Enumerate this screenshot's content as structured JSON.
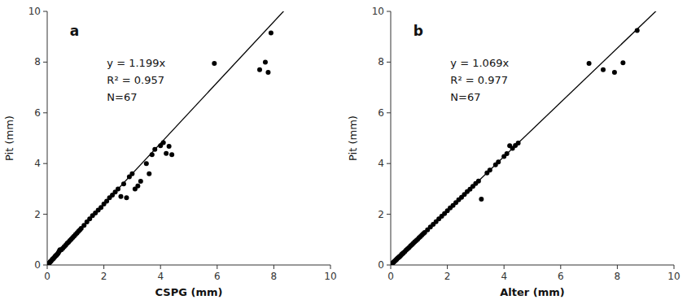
{
  "chart_data": [
    {
      "type": "scatter",
      "title": "a",
      "xlabel": "CSPG (mm)",
      "ylabel": "Pit (mm)",
      "slope": 1.199,
      "annotations": [
        "y = 1.199x",
        "R² = 0.957",
        "N=67"
      ],
      "xlim": [
        0,
        10
      ],
      "ylim": [
        0,
        10
      ],
      "xticks": [
        0,
        2,
        4,
        6,
        8,
        10
      ],
      "yticks": [
        0,
        2,
        4,
        6,
        8,
        10
      ],
      "grid": false,
      "color": "#000000",
      "x": [
        0.05,
        0.07,
        0.1,
        0.12,
        0.15,
        0.18,
        0.2,
        0.22,
        0.25,
        0.28,
        0.3,
        0.32,
        0.35,
        0.38,
        0.4,
        0.43,
        0.45,
        0.5,
        0.55,
        0.6,
        0.65,
        0.7,
        0.75,
        0.8,
        0.85,
        0.9,
        0.95,
        1.0,
        1.05,
        1.1,
        1.15,
        1.2,
        1.3,
        1.4,
        1.5,
        1.6,
        1.7,
        1.8,
        1.9,
        2.0,
        2.1,
        2.2,
        2.3,
        2.4,
        2.5,
        2.6,
        2.7,
        2.8,
        2.9,
        3.0,
        3.1,
        3.2,
        3.3,
        3.5,
        3.6,
        3.7,
        3.8,
        4.0,
        4.1,
        4.2,
        4.3,
        4.4,
        5.9,
        7.5,
        7.7,
        7.8,
        7.9
      ],
      "values": [
        0.05,
        0.07,
        0.12,
        0.14,
        0.18,
        0.22,
        0.24,
        0.26,
        0.3,
        0.34,
        0.37,
        0.38,
        0.42,
        0.46,
        0.5,
        0.55,
        0.6,
        0.6,
        0.66,
        0.72,
        0.78,
        0.85,
        0.9,
        0.96,
        1.02,
        1.08,
        1.14,
        1.2,
        1.26,
        1.32,
        1.38,
        1.44,
        1.56,
        1.7,
        1.82,
        1.95,
        2.05,
        2.16,
        2.27,
        2.4,
        2.52,
        2.65,
        2.76,
        2.88,
        3.0,
        2.7,
        3.2,
        2.65,
        3.48,
        3.6,
        3.0,
        3.12,
        3.3,
        4.0,
        3.6,
        4.35,
        4.56,
        4.7,
        4.82,
        4.4,
        4.68,
        4.35,
        7.95,
        7.7,
        8.0,
        7.6,
        9.15
      ]
    },
    {
      "type": "scatter",
      "title": "b",
      "xlabel": "Alter (mm)",
      "ylabel": "Pit (mm)",
      "slope": 1.069,
      "annotations": [
        "y = 1.069x",
        "R² = 0.977",
        "N=67"
      ],
      "xlim": [
        0,
        10
      ],
      "ylim": [
        0,
        10
      ],
      "xticks": [
        0,
        2,
        4,
        6,
        8,
        10
      ],
      "yticks": [
        0,
        2,
        4,
        6,
        8,
        10
      ],
      "grid": false,
      "color": "#000000",
      "x": [
        0.05,
        0.07,
        0.1,
        0.12,
        0.15,
        0.18,
        0.2,
        0.22,
        0.25,
        0.28,
        0.3,
        0.32,
        0.35,
        0.38,
        0.4,
        0.43,
        0.45,
        0.5,
        0.55,
        0.6,
        0.65,
        0.7,
        0.75,
        0.8,
        0.85,
        0.9,
        0.95,
        1.0,
        1.05,
        1.1,
        1.15,
        1.2,
        1.3,
        1.4,
        1.5,
        1.6,
        1.7,
        1.8,
        1.9,
        2.0,
        2.1,
        2.2,
        2.3,
        2.4,
        2.5,
        2.6,
        2.7,
        2.8,
        2.9,
        3.0,
        3.1,
        3.2,
        3.4,
        3.5,
        3.7,
        3.8,
        4.0,
        4.1,
        4.2,
        4.3,
        4.4,
        4.5,
        7.0,
        7.5,
        7.9,
        8.2,
        8.7
      ],
      "values": [
        0.05,
        0.07,
        0.11,
        0.13,
        0.16,
        0.19,
        0.21,
        0.24,
        0.27,
        0.3,
        0.32,
        0.34,
        0.37,
        0.41,
        0.43,
        0.46,
        0.48,
        0.53,
        0.59,
        0.64,
        0.69,
        0.75,
        0.8,
        0.86,
        0.91,
        0.96,
        1.01,
        1.07,
        1.12,
        1.18,
        1.23,
        1.28,
        1.39,
        1.5,
        1.6,
        1.71,
        1.82,
        1.92,
        2.03,
        2.14,
        2.25,
        2.35,
        2.46,
        2.57,
        2.67,
        2.78,
        2.89,
        2.99,
        3.1,
        3.21,
        3.31,
        2.6,
        3.63,
        3.74,
        3.95,
        4.06,
        4.28,
        4.39,
        4.7,
        4.6,
        4.71,
        4.81,
        7.95,
        7.7,
        7.6,
        7.97,
        9.25
      ]
    }
  ]
}
